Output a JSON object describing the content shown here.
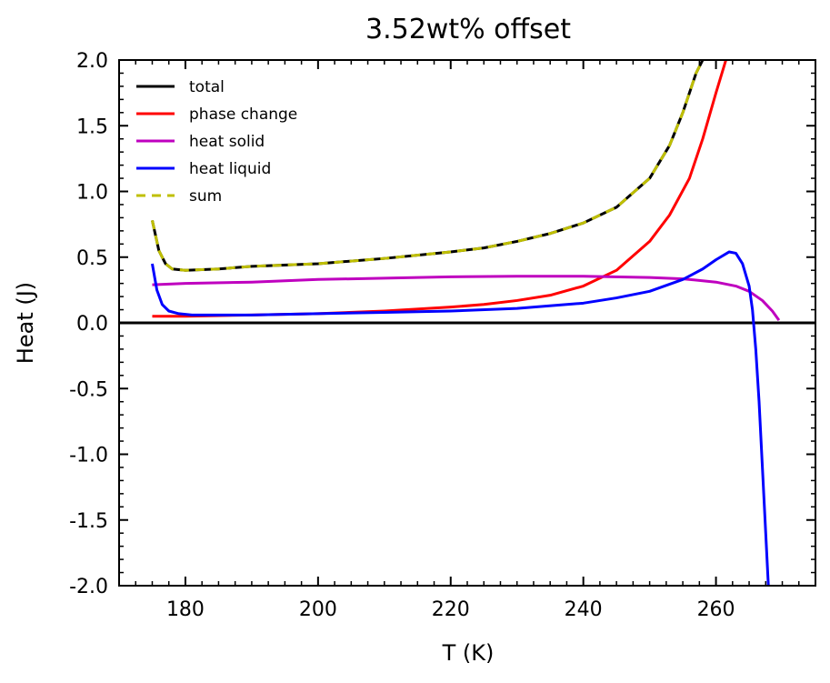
{
  "chart_data": {
    "type": "line",
    "title": "3.52wt% offset",
    "xlabel": "T (K)",
    "ylabel": "Heat (J)",
    "xlim": [
      170,
      275
    ],
    "ylim": [
      -2.0,
      2.0
    ],
    "xticks": [
      180,
      200,
      220,
      240,
      260
    ],
    "xtick_labels": [
      "180",
      "200",
      "220",
      "240",
      "260"
    ],
    "yticks": [
      -2.0,
      -1.5,
      -1.0,
      -0.5,
      0.0,
      0.5,
      1.0,
      1.5,
      2.0
    ],
    "ytick_labels": [
      "-2.0",
      "-1.5",
      "-1.0",
      "-0.5",
      "0.0",
      "0.5",
      "1.0",
      "1.5",
      "2.0"
    ],
    "grid": false,
    "legend_position": "top-left",
    "horizontal_line_y": 0.0,
    "series": [
      {
        "name": "total",
        "color": "#000000",
        "style": "solid",
        "x": [
          175,
          176,
          177,
          178,
          180,
          185,
          190,
          200,
          210,
          220,
          225,
          230,
          235,
          240,
          245,
          250,
          253,
          255,
          257,
          258
        ],
        "y": [
          0.78,
          0.55,
          0.45,
          0.41,
          0.4,
          0.41,
          0.43,
          0.45,
          0.49,
          0.54,
          0.57,
          0.62,
          0.68,
          0.76,
          0.88,
          1.1,
          1.35,
          1.6,
          1.9,
          2.0
        ]
      },
      {
        "name": "phase change",
        "color": "#ff0000",
        "style": "solid",
        "x": [
          175,
          180,
          190,
          200,
          210,
          220,
          225,
          230,
          235,
          240,
          245,
          250,
          253,
          256,
          258,
          260,
          261.5
        ],
        "y": [
          0.05,
          0.05,
          0.06,
          0.07,
          0.09,
          0.12,
          0.14,
          0.17,
          0.21,
          0.28,
          0.4,
          0.62,
          0.82,
          1.1,
          1.4,
          1.75,
          2.0
        ]
      },
      {
        "name": "heat solid",
        "color": "#bf00bf",
        "style": "solid",
        "x": [
          175,
          180,
          190,
          200,
          210,
          220,
          230,
          240,
          250,
          255,
          260,
          263,
          265,
          267,
          268.5,
          269.5
        ],
        "y": [
          0.29,
          0.3,
          0.31,
          0.33,
          0.34,
          0.35,
          0.355,
          0.355,
          0.345,
          0.335,
          0.31,
          0.28,
          0.24,
          0.17,
          0.09,
          0.02
        ]
      },
      {
        "name": "heat liquid",
        "color": "#0000ff",
        "style": "solid",
        "x": [
          175,
          175.7,
          176.5,
          177.5,
          179,
          181,
          185,
          190,
          200,
          210,
          220,
          230,
          240,
          245,
          250,
          255,
          258,
          260,
          262,
          263,
          264,
          265,
          265.5,
          266,
          266.5,
          267,
          267.5,
          267.9
        ],
        "y": [
          0.45,
          0.25,
          0.14,
          0.09,
          0.07,
          0.06,
          0.06,
          0.06,
          0.07,
          0.08,
          0.09,
          0.11,
          0.15,
          0.19,
          0.24,
          0.33,
          0.41,
          0.48,
          0.54,
          0.53,
          0.45,
          0.28,
          0.1,
          -0.2,
          -0.6,
          -1.1,
          -1.6,
          -2.0
        ]
      },
      {
        "name": "sum",
        "color": "#bfbf00",
        "style": "dashed",
        "x": [
          175,
          176,
          177,
          178,
          180,
          185,
          190,
          200,
          210,
          220,
          225,
          230,
          235,
          240,
          245,
          250,
          253,
          255,
          257,
          258
        ],
        "y": [
          0.78,
          0.55,
          0.45,
          0.41,
          0.4,
          0.41,
          0.43,
          0.45,
          0.49,
          0.54,
          0.57,
          0.62,
          0.68,
          0.76,
          0.88,
          1.1,
          1.35,
          1.6,
          1.9,
          2.0
        ]
      }
    ]
  }
}
